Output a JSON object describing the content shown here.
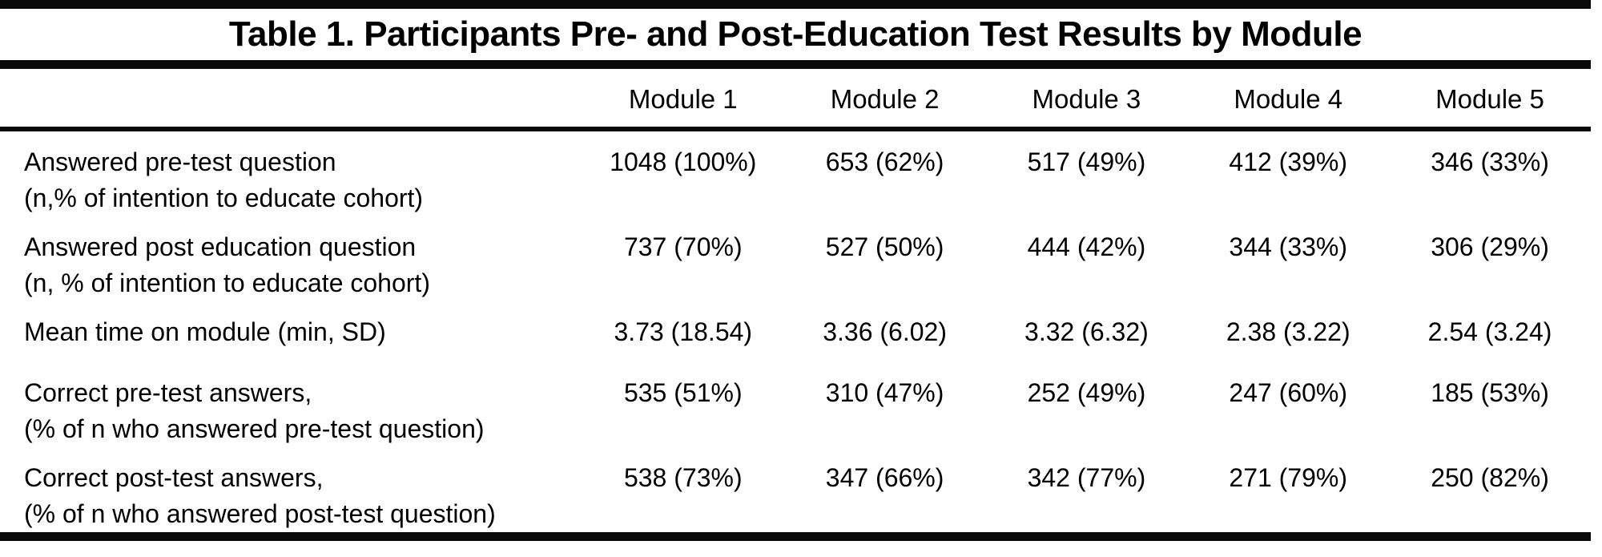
{
  "table": {
    "title": "Table 1. Participants Pre- and Post-Education Test Results by Module",
    "columns": [
      "Module 1",
      "Module 2",
      "Module 3",
      "Module 4",
      "Module 5"
    ],
    "rows": [
      {
        "label_line1": "Answered pre-test question",
        "label_line2": "(n,% of intention to educate cohort)",
        "values": [
          "1048 (100%)",
          "653 (62%)",
          "517 (49%)",
          "412 (39%)",
          "346 (33%)"
        ]
      },
      {
        "label_line1": "Answered post education question",
        "label_line2": "(n, % of intention to educate cohort)",
        "values": [
          "737 (70%)",
          "527 (50%)",
          "444 (42%)",
          "344 (33%)",
          "306 (29%)"
        ]
      },
      {
        "label_line1": "Mean time on module (min, SD)",
        "label_line2": "",
        "values": [
          "3.73 (18.54)",
          "3.36 (6.02)",
          "3.32 (6.32)",
          "2.38 (3.22)",
          "2.54 (3.24)"
        ]
      },
      {
        "label_line1": "Correct pre-test answers,",
        "label_line2": "(% of n who answered pre-test question)",
        "values": [
          "535 (51%)",
          "310 (47%)",
          "252 (49%)",
          "247 (60%)",
          "185 (53%)"
        ]
      },
      {
        "label_line1": "Correct post-test answers,",
        "label_line2": "(% of n who answered post-test question)",
        "values": [
          "538 (73%)",
          "347 (66%)",
          "342 (77%)",
          "271 (79%)",
          "250 (82%)"
        ]
      }
    ],
    "colors": {
      "text": "#000000",
      "background": "#ffffff",
      "rule": "#0a0a0a"
    }
  },
  "chart_data": {
    "type": "table",
    "title": "Table 1. Participants Pre- and Post-Education Test Results by Module",
    "columns": [
      "",
      "Module 1",
      "Module 2",
      "Module 3",
      "Module 4",
      "Module 5"
    ],
    "rows": [
      [
        "Answered pre-test question (n,% of intention to educate cohort)",
        "1048 (100%)",
        "653 (62%)",
        "517 (49%)",
        "412 (39%)",
        "346 (33%)"
      ],
      [
        "Answered post education question (n, % of intention to educate cohort)",
        "737 (70%)",
        "527 (50%)",
        "444 (42%)",
        "344 (33%)",
        "306 (29%)"
      ],
      [
        "Mean time on module (min, SD)",
        "3.73 (18.54)",
        "3.36 (6.02)",
        "3.32 (6.32)",
        "2.38 (3.22)",
        "2.54 (3.24)"
      ],
      [
        "Correct pre-test answers, (% of n who answered pre-test question)",
        "535 (51%)",
        "310 (47%)",
        "252 (49%)",
        "247 (60%)",
        "185 (53%)"
      ],
      [
        "Correct post-test answers, (% of n who answered post-test question)",
        "538 (73%)",
        "347 (66%)",
        "342 (77%)",
        "271 (79%)",
        "250 (82%)"
      ]
    ]
  }
}
